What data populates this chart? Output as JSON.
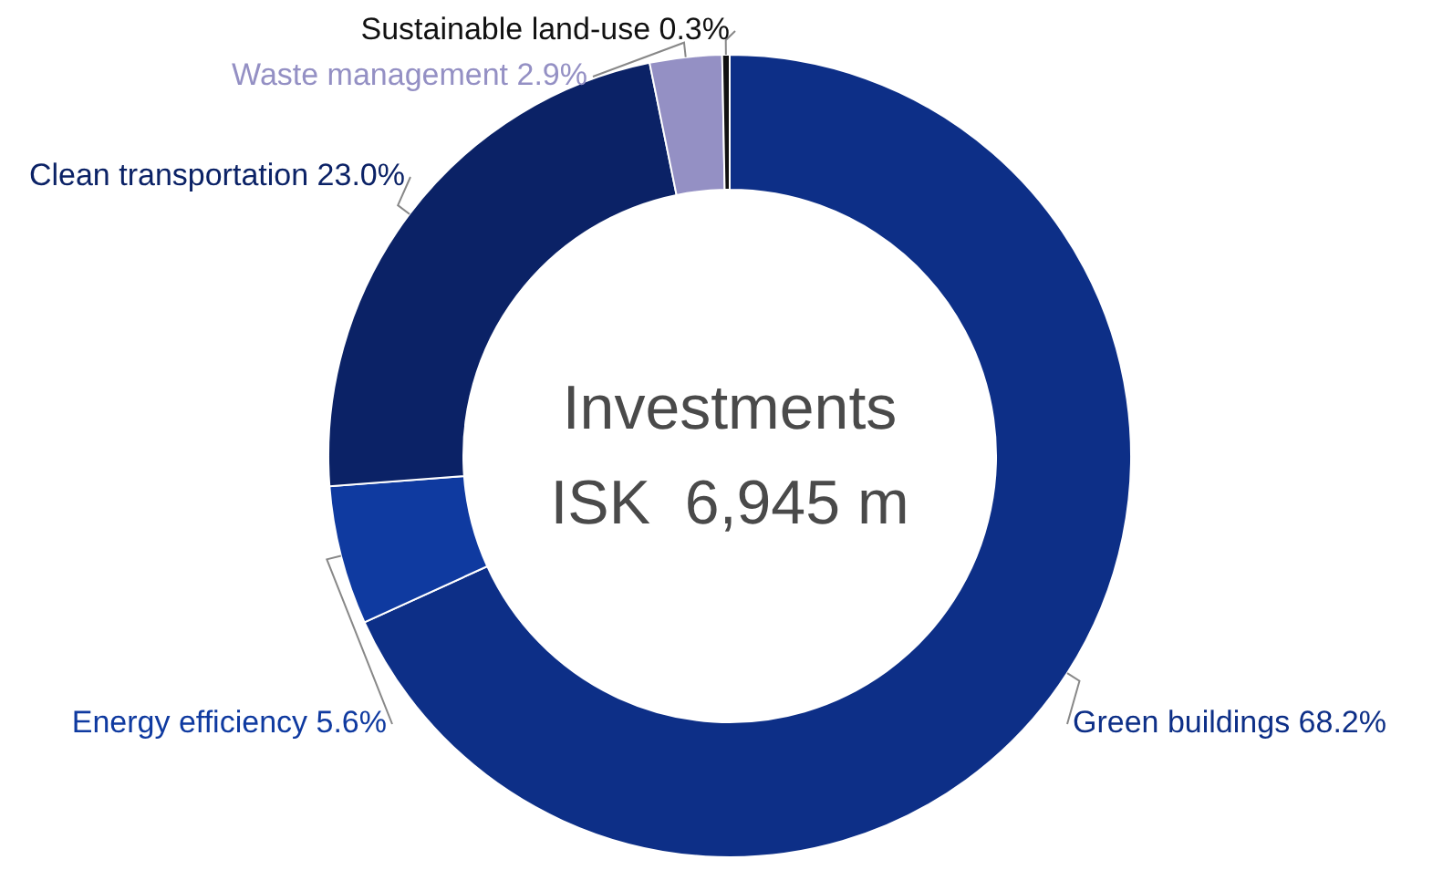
{
  "chart_data": {
    "type": "donut",
    "categories": [
      "Green buildings",
      "Energy efficiency",
      "Clean transportation",
      "Waste management",
      "Sustainable land-use"
    ],
    "values": [
      68.2,
      5.6,
      23.0,
      2.9,
      0.3
    ],
    "value_labels": [
      "68.2%",
      "5.6%",
      "23.0%",
      "2.9%",
      "0.3%"
    ],
    "colors": [
      "#0d2f87",
      "#0f3aa0",
      "#0b2266",
      "#9490c4",
      "#111111"
    ],
    "annotations": [
      "Investments",
      "ISK  6,945 m"
    ]
  }
}
